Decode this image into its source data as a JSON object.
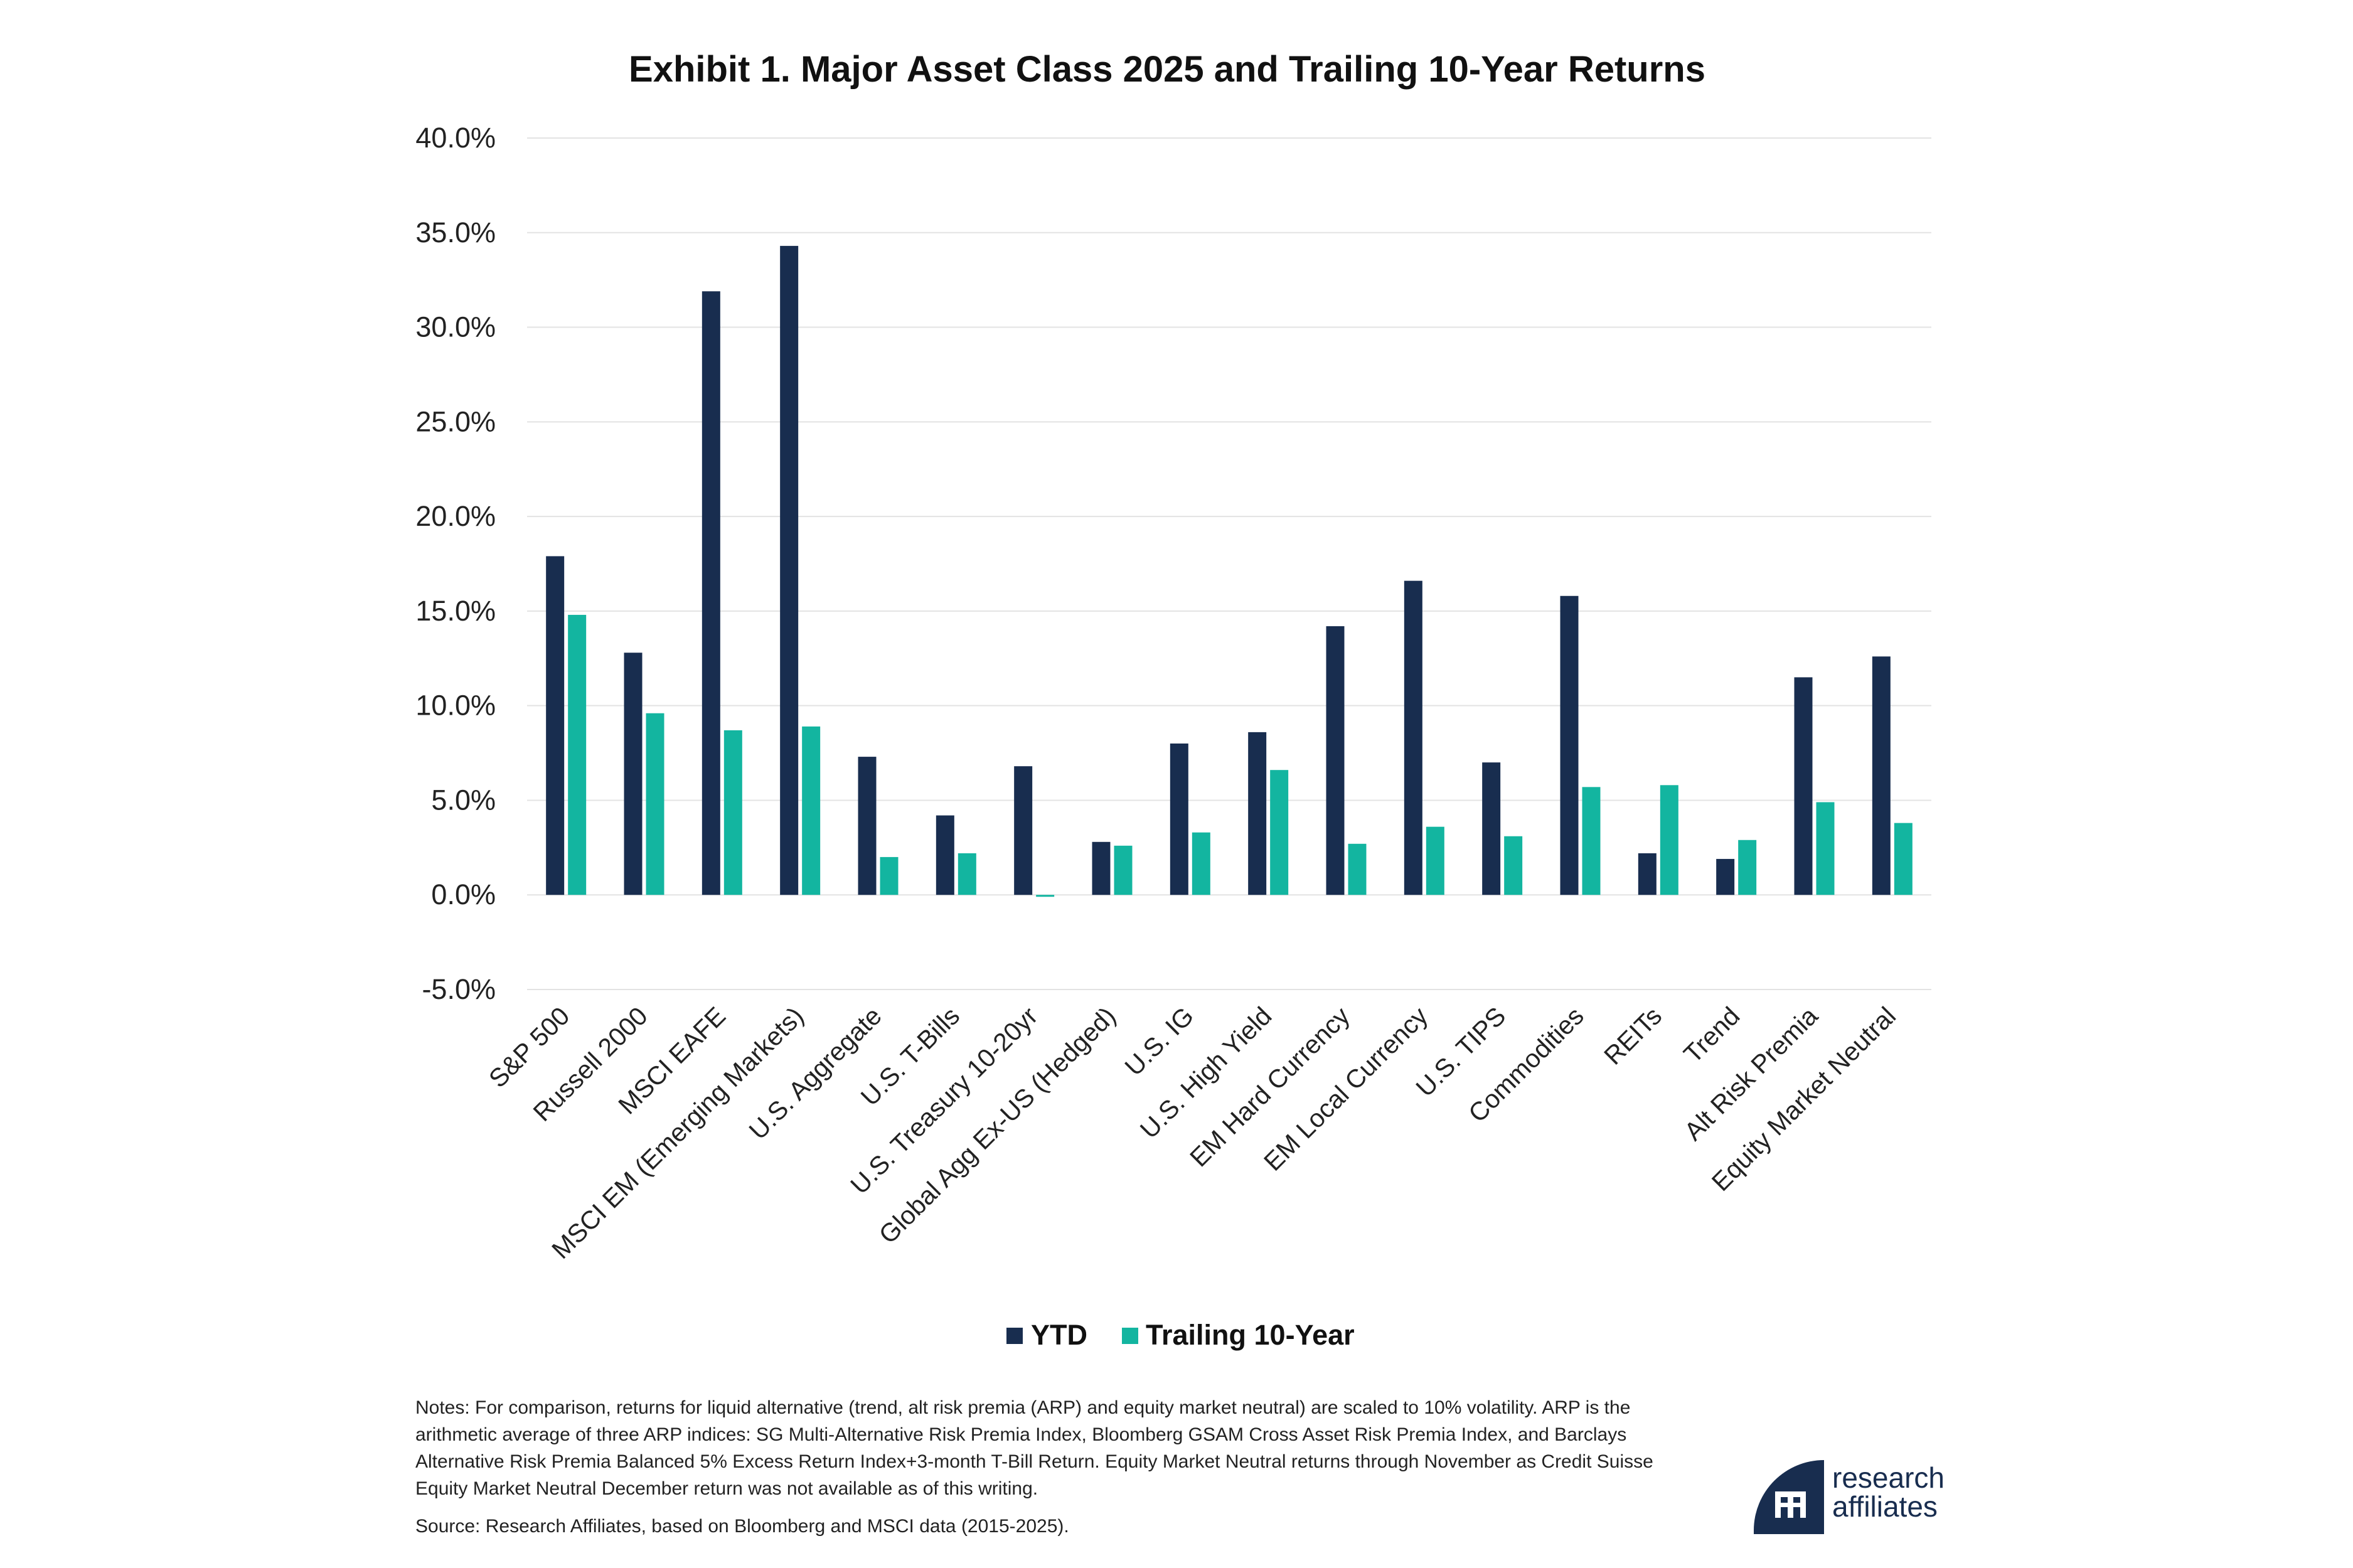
{
  "colors": {
    "ytd": "#182d4f",
    "trailing": "#13b5a0",
    "grid": "#e3e3e3",
    "logo": "#182d4f"
  },
  "logo": {
    "word1": "research",
    "word2": "affiliates",
    "mark": "ra-monogram-icon"
  },
  "notes": "Notes: For comparison, returns for liquid alternative (trend, alt risk premia (ARP) and equity market neutral) are scaled to 10% volatility. ARP is the arithmetic average of three ARP indices: SG Multi-Alternative Risk Premia Index, Bloomberg GSAM Cross Asset Risk Premia Index, and Barclays Alternative Risk Premia Balanced 5% Excess Return Index+3-month T-Bill Return. Equity Market Neutral returns through November as Credit Suisse Equity Market Neutral December return was not available as of this writing.",
  "source": "Source: Research Affiliates, based on Bloomberg and MSCI data (2015-2025).",
  "chart_data": {
    "type": "bar",
    "title": "Exhibit 1. Major Asset Class 2025 and Trailing 10-Year Returns",
    "xlabel": "",
    "ylabel": "",
    "ylim": [
      -5,
      40
    ],
    "yticks": [
      40,
      35,
      30,
      25,
      20,
      15,
      10,
      5,
      0,
      -5
    ],
    "ytick_labels": [
      "40.0%",
      "35.0%",
      "30.0%",
      "25.0%",
      "20.0%",
      "15.0%",
      "10.0%",
      "5.0%",
      "0.0%",
      "-5.0%"
    ],
    "grid": true,
    "legend_position": "bottom-center",
    "categories": [
      "S&P 500",
      "Russell 2000",
      "MSCI EAFE",
      "MSCI EM (Emerging Markets)",
      "U.S. Aggregate",
      "U.S. T-Bills",
      "U.S. Treasury 10-20yr",
      "Global Agg Ex-US (Hedged)",
      "U.S. IG",
      "U.S. High Yield",
      "EM Hard Currency",
      "EM Local Currency",
      "U.S. TIPS",
      "Commodities",
      "REITs",
      "Trend",
      "Alt Risk Premia",
      "Equity Market Neutral"
    ],
    "series": [
      {
        "name": "YTD",
        "values": [
          17.9,
          12.8,
          31.9,
          34.3,
          7.3,
          4.2,
          6.8,
          2.8,
          8.0,
          8.6,
          14.2,
          16.6,
          7.0,
          15.8,
          2.2,
          1.9,
          11.5,
          12.6
        ]
      },
      {
        "name": "Trailing 10-Year",
        "values": [
          14.8,
          9.6,
          8.7,
          8.9,
          2.0,
          2.2,
          -0.1,
          2.6,
          3.3,
          6.6,
          2.7,
          3.6,
          3.1,
          5.7,
          5.8,
          2.9,
          4.9,
          3.8
        ]
      }
    ]
  }
}
